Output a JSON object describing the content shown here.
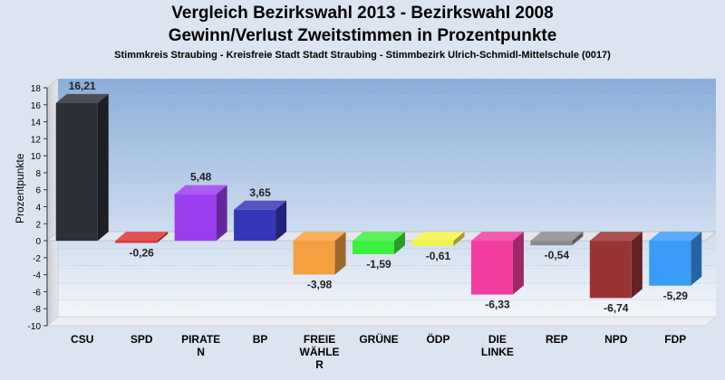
{
  "chart_data": {
    "type": "bar",
    "title": "Vergleich Bezirkswahl 2013 - Bezirkswahl 2008",
    "subtitle": "Gewinn/Verlust Zweitstimmen in Prozentpunkte",
    "caption": "Stimmkreis Straubing - Kreisfreie Stadt Stadt Straubing - Stimmbezirk Ulrich-Schmidl-Mittelschule (0017)",
    "ylabel": "Prozentpunkte",
    "xlabel": "",
    "ylim": [
      -10,
      18
    ],
    "yticks": [
      "18",
      "16",
      "14",
      "12",
      "10",
      "8",
      "6",
      "4",
      "2",
      "0",
      "-2",
      "-4",
      "-6",
      "-8",
      "-10"
    ],
    "grid": true,
    "categories": [
      [
        "CSU"
      ],
      [
        "SPD"
      ],
      [
        "PIRATE",
        "N"
      ],
      [
        "BP"
      ],
      [
        "FREIE",
        "WÄHLE",
        "R"
      ],
      [
        "GRÜNE"
      ],
      [
        "ÖDP"
      ],
      [
        "DIE",
        "LINKE"
      ],
      [
        "REP"
      ],
      [
        "NPD"
      ],
      [
        "FDP"
      ]
    ],
    "values": [
      16.21,
      -0.26,
      5.48,
      3.65,
      -3.98,
      -1.59,
      -0.61,
      -6.33,
      -0.54,
      -6.74,
      -5.29
    ],
    "value_labels": [
      "16,21",
      "-0,26",
      "5,48",
      "3,65",
      "-3,98",
      "-1,59",
      "-0,61",
      "-6,33",
      "-0,54",
      "-6,74",
      "-5,29"
    ],
    "colors": [
      "#2c2f38",
      "#d83434",
      "#9b3ef0",
      "#3636b8",
      "#f5a040",
      "#3cf040",
      "#f2f24a",
      "#f23ca0",
      "#8a8a8a",
      "#9a3434",
      "#3a9cf7"
    ]
  }
}
